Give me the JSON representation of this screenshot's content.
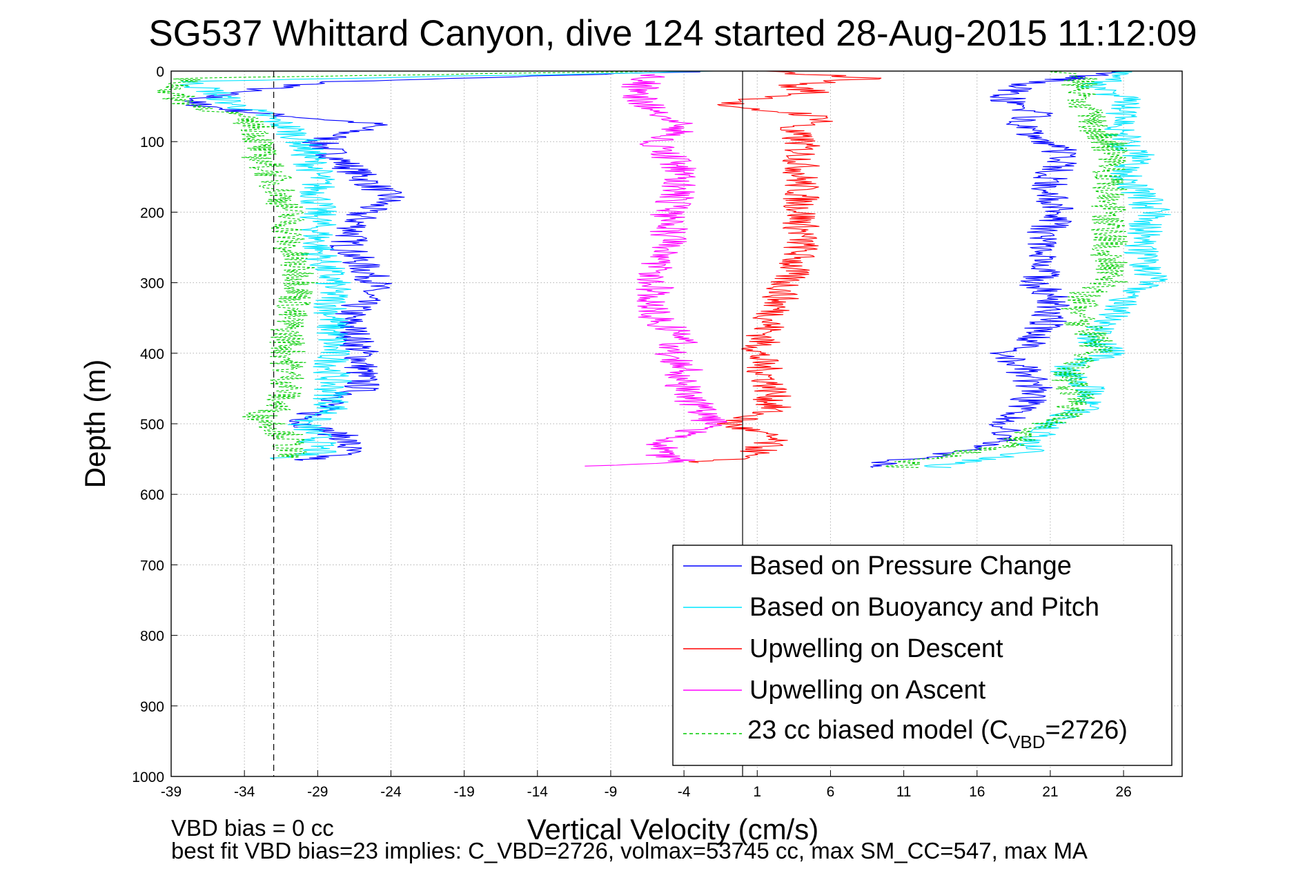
{
  "chart_data": {
    "type": "line",
    "title": "SG537 Whittard Canyon, dive 124 started 28-Aug-2015 11:12:09",
    "xlabel": "Vertical Velocity (cm/s)",
    "ylabel": "Depth (m)",
    "xlim": [
      -39,
      30
    ],
    "ylim": [
      0,
      1000
    ],
    "y_reversed": true,
    "grid": true,
    "xticks": [
      "-39",
      "-34",
      "-29",
      "-24",
      "-19",
      "-14",
      "-9",
      "-4",
      "1",
      "6",
      "11",
      "16",
      "21",
      "26"
    ],
    "yticks": [
      "0",
      "100",
      "200",
      "300",
      "400",
      "500",
      "600",
      "700",
      "800",
      "900",
      "1000"
    ],
    "reference_lines": {
      "zero_velocity_x": 0,
      "bias_dashed_x": -32
    },
    "legend_position": "bottom-right",
    "footer": {
      "line1": "VBD bias = 0 cc",
      "line2": "best fit VBD bias=23 implies: C_VBD=2726, volmax=53745 cc, max SM_CC=547, max MA"
    },
    "series": [
      {
        "name": "Based on Pressure Change",
        "color": "#0000ff",
        "description_segments": [
          "descent",
          "ascent"
        ],
        "descent": {
          "depth": [
            0,
            15,
            30,
            45,
            60,
            75,
            100,
            150,
            180,
            200,
            250,
            300,
            350,
            400,
            450,
            480,
            500,
            520,
            540,
            552
          ],
          "velocity": [
            -2,
            -28,
            -35,
            -38,
            -33,
            -25,
            -29,
            -26,
            -24,
            -26,
            -27,
            -25,
            -27,
            -26,
            -26,
            -29,
            -30,
            -27,
            -27,
            -30
          ]
        },
        "ascent": {
          "depth": [
            562,
            555,
            545,
            535,
            520,
            500,
            480,
            450,
            420,
            400,
            380,
            350,
            320,
            300,
            280,
            250,
            220,
            200,
            180,
            150,
            120,
            100,
            80,
            60,
            40,
            20,
            0
          ],
          "velocity": [
            8,
            10,
            13,
            16,
            18,
            18,
            19,
            20,
            19,
            18,
            20,
            21,
            21,
            20,
            21,
            20,
            21,
            22,
            21,
            21,
            22,
            21,
            19,
            20,
            18,
            19,
            26
          ]
        }
      },
      {
        "name": "Based on Buoyancy and Pitch",
        "color": "#00e5ff",
        "descent": {
          "depth": [
            0,
            15,
            30,
            45,
            60,
            80,
            100,
            150,
            200,
            250,
            300,
            350,
            400,
            450,
            480,
            500,
            520,
            540,
            550
          ],
          "velocity": [
            -2,
            -38,
            -36,
            -35,
            -33,
            -31,
            -30,
            -29,
            -29,
            -29,
            -28,
            -28,
            -28,
            -28,
            -28,
            -30,
            -29,
            -29,
            -32
          ]
        },
        "ascent": {
          "depth": [
            562,
            555,
            540,
            520,
            500,
            480,
            460,
            440,
            420,
            400,
            380,
            350,
            320,
            300,
            250,
            200,
            170,
            150,
            120,
            100,
            80,
            60,
            40,
            20,
            0
          ],
          "velocity": [
            13,
            15,
            20,
            20,
            21,
            23,
            24,
            23,
            22,
            25,
            24,
            25,
            26,
            28,
            27,
            28,
            27,
            26,
            27,
            26,
            26,
            26,
            26,
            24,
            26
          ]
        }
      },
      {
        "name": "Upwelling on Descent",
        "color": "#ff0000",
        "descent": {
          "depth": [
            0,
            10,
            20,
            30,
            40,
            50,
            60,
            70,
            80,
            100,
            150,
            200,
            250,
            300,
            350,
            400,
            450,
            480,
            500,
            520,
            540,
            550,
            555
          ],
          "velocity": [
            1,
            9,
            3,
            5,
            1,
            -2,
            4,
            6,
            3,
            4,
            4,
            4,
            4,
            3,
            2,
            1,
            2,
            2,
            -1,
            2,
            1,
            -1,
            -3
          ]
        }
      },
      {
        "name": "Upwelling on Ascent",
        "color": "#ff00ff",
        "ascent": {
          "depth": [
            560,
            555,
            540,
            520,
            500,
            480,
            450,
            420,
            400,
            380,
            350,
            320,
            300,
            280,
            250,
            200,
            150,
            120,
            100,
            80,
            60,
            40,
            20,
            5
          ],
          "velocity": [
            -11,
            -4,
            -6,
            -5,
            -2,
            -3,
            -4,
            -4,
            -5,
            -4,
            -6,
            -6,
            -6,
            -6,
            -5,
            -5,
            -4,
            -5,
            -6,
            -4,
            -6,
            -7,
            -7,
            -6
          ]
        }
      },
      {
        "name": "23 cc biased model (C_VBD=2726)",
        "color": "#00cc00",
        "dashed": true,
        "descent": {
          "depth": [
            0,
            10,
            30,
            45,
            60,
            80,
            100,
            120,
            150,
            200,
            250,
            300,
            350,
            400,
            450,
            480,
            490,
            500,
            520,
            540,
            548
          ],
          "velocity": [
            -5,
            -38,
            -39,
            -38,
            -35,
            -33,
            -33,
            -33,
            -32,
            -31,
            -31,
            -30,
            -31,
            -31,
            -31,
            -32,
            -33,
            -32,
            -31,
            -31,
            -31
          ]
        },
        "ascent": {
          "depth": [
            562,
            555,
            530,
            510,
            490,
            460,
            430,
            400,
            380,
            350,
            320,
            300,
            250,
            200,
            150,
            100,
            80,
            60,
            40,
            10,
            0
          ],
          "velocity": [
            11,
            11,
            18,
            20,
            22,
            23,
            22,
            24,
            24,
            23,
            23,
            25,
            25,
            25,
            25,
            25,
            24,
            24,
            23,
            23,
            22
          ]
        }
      }
    ],
    "legend": {
      "entries": [
        "Based on Pressure Change",
        "Based on Buoyancy and Pitch",
        "Upwelling on Descent",
        "Upwelling on Ascent"
      ],
      "last_entry_main": "23 cc biased model (C",
      "last_entry_sub": "VBD",
      "last_entry_tail": "=2726)"
    }
  }
}
